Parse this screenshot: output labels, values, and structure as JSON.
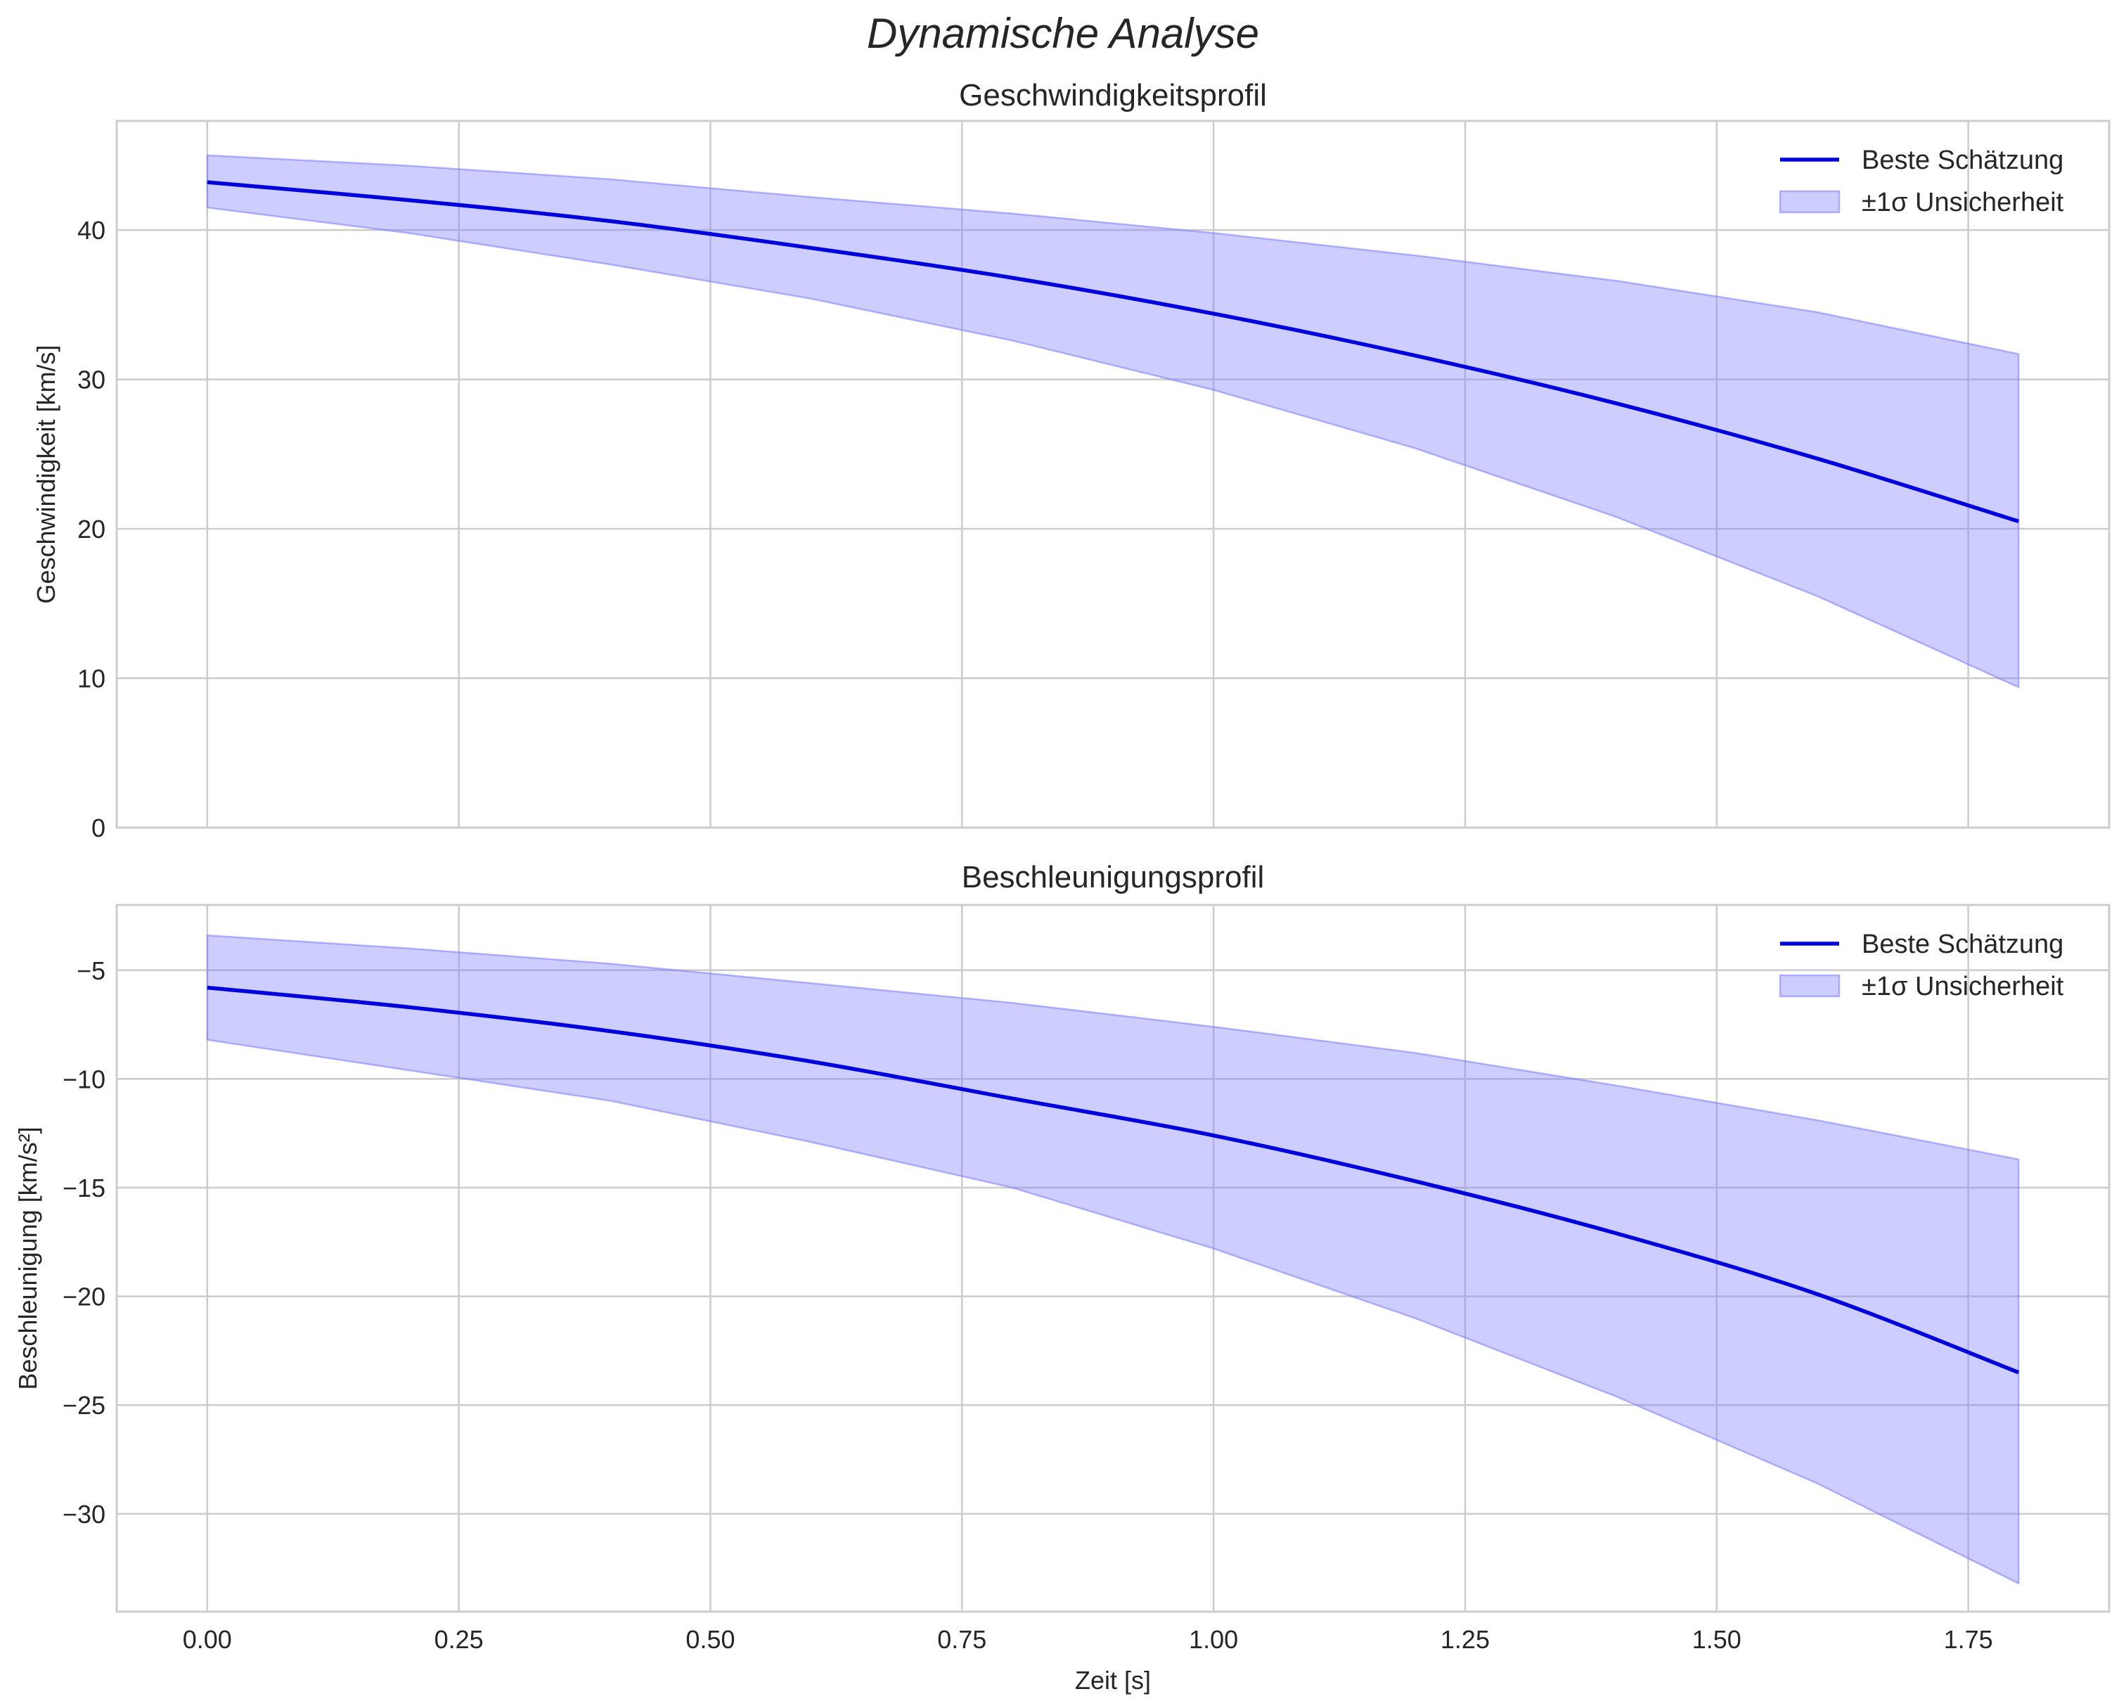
{
  "chart_data": {
    "suptitle": "Dynamische Analyse",
    "colors": {
      "line": "#0000dd",
      "band": "#7b7bff",
      "band_edge": "#7b7bff",
      "grid": "#cccccc",
      "spine": "#cccccc",
      "background": "#ffffff"
    },
    "x_ticks": [
      "0.00",
      "0.25",
      "0.50",
      "0.75",
      "1.00",
      "1.25",
      "1.50",
      "1.75"
    ],
    "x_tick_values": [
      0,
      0.25,
      0.5,
      0.75,
      1.0,
      1.25,
      1.5,
      1.75
    ],
    "xlabel": "Zeit [s]",
    "xlim": [
      -0.09,
      1.89
    ],
    "x": [
      0.0,
      0.2,
      0.4,
      0.6,
      0.8,
      1.0,
      1.2,
      1.4,
      1.6,
      1.8
    ],
    "subplots": [
      {
        "type": "line",
        "title": "Geschwindigkeitsprofil",
        "ylabel": "Geschwindigkeit [km/s]",
        "ylim": [
          0,
          47.3
        ],
        "y_ticks": [
          "0",
          "10",
          "20",
          "30",
          "40"
        ],
        "y_tick_values": [
          0,
          10,
          20,
          30,
          40
        ],
        "legend_position": "upper right",
        "series": [
          {
            "name": "Beste Schätzung",
            "kind": "line",
            "values": [
              43.2,
              42.0,
              40.6,
              38.8,
              36.8,
              34.4,
              31.6,
              28.4,
              24.7,
              20.5
            ]
          },
          {
            "name": "±1σ Unsicherheit",
            "kind": "band",
            "upper": [
              45.0,
              44.3,
              43.4,
              42.2,
              41.1,
              39.8,
              38.3,
              36.6,
              34.5,
              31.7
            ],
            "lower": [
              41.5,
              39.8,
              37.7,
              35.4,
              32.6,
              29.3,
              25.4,
              20.8,
              15.5,
              9.4
            ]
          }
        ]
      },
      {
        "type": "line",
        "title": "Beschleunigungsprofil",
        "ylabel": "Beschleunigung [km/s²]",
        "ylim": [
          -34.5,
          -2.0
        ],
        "y_ticks": [
          "−5",
          "−10",
          "−15",
          "−20",
          "−25",
          "−30"
        ],
        "y_tick_values": [
          -5,
          -10,
          -15,
          -20,
          -25,
          -30
        ],
        "legend_position": "upper right",
        "series": [
          {
            "name": "Beste Schätzung",
            "kind": "line",
            "values": [
              -5.8,
              -6.7,
              -7.8,
              -9.2,
              -10.9,
              -12.6,
              -14.7,
              -17.1,
              -19.9,
              -23.5
            ]
          },
          {
            "name": "±1σ Unsicherheit",
            "kind": "band",
            "upper": [
              -3.4,
              -4.0,
              -4.7,
              -5.6,
              -6.5,
              -7.6,
              -8.8,
              -10.3,
              -11.9,
              -13.7
            ],
            "lower": [
              -8.2,
              -9.6,
              -11.0,
              -12.9,
              -15.0,
              -17.8,
              -21.0,
              -24.6,
              -28.6,
              -33.2
            ]
          }
        ]
      }
    ]
  }
}
